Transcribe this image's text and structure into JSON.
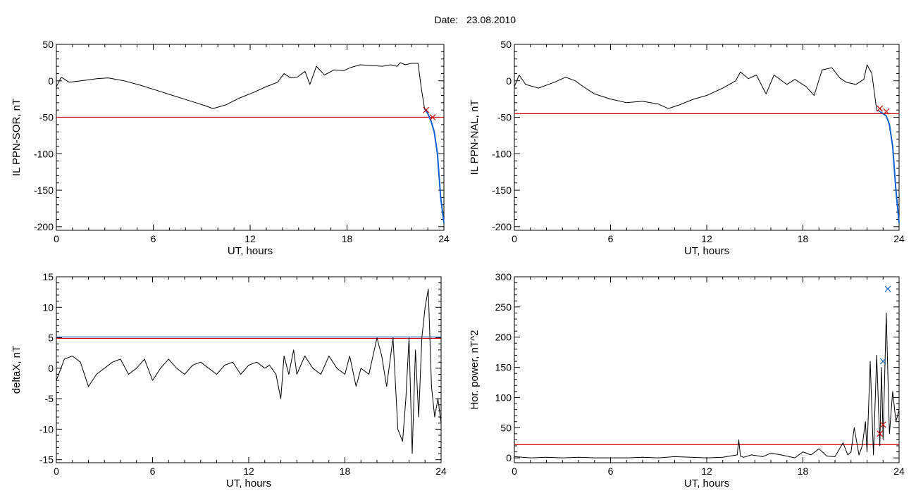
{
  "header": {
    "label": "Date:",
    "date": "23.08.2010"
  },
  "colors": {
    "trace": "#000000",
    "threshold": "#cc0000",
    "blue": "#1060d0",
    "cyan": "#00c8c8",
    "green": "#00a000"
  },
  "chart_data": [
    {
      "type": "line",
      "ylabel": "IL PPN-SOR, nT",
      "xlabel": "UT, hours",
      "xlim": [
        0,
        24
      ],
      "ylim": [
        -205,
        50
      ],
      "xticks": [
        "0",
        "6",
        "12",
        "18",
        "24"
      ],
      "yticks": [
        "50",
        "0",
        "-50",
        "-100",
        "-150",
        "-200"
      ],
      "threshold": -50,
      "series": [
        {
          "x": [
            0,
            0.3,
            0.8,
            1.5,
            2.5,
            3.2,
            4.2,
            5.2,
            6.2,
            7.2,
            8.2,
            9.2,
            9.7,
            10.5,
            11.3,
            12.2,
            13,
            13.7,
            14.1,
            14.5,
            14.9,
            15.4,
            15.7,
            16.1,
            16.6,
            17.2,
            17.8,
            18.2,
            18.8,
            19.5,
            20.2,
            20.7,
            21.1,
            21.3,
            21.6,
            22,
            22.4,
            22.6,
            22.8,
            23,
            23.2,
            23.4,
            23.6,
            23.8,
            24
          ],
          "y": [
            -8,
            5,
            -2,
            0,
            3,
            4,
            0,
            -6,
            -13,
            -20,
            -27,
            -34,
            -38,
            -33,
            -24,
            -16,
            -8,
            -2,
            10,
            4,
            5,
            13,
            -5,
            20,
            8,
            15,
            14,
            18,
            22,
            21,
            20,
            22,
            20,
            25,
            22,
            24,
            24,
            -10,
            -38,
            -45,
            -55,
            -70,
            -100,
            -160,
            -195
          ]
        }
      ],
      "markers": [
        {
          "x": 22.9,
          "y": -40,
          "shape": "x",
          "color": "red"
        },
        {
          "x": 23.3,
          "y": -50,
          "shape": "x",
          "color": "red"
        }
      ]
    },
    {
      "type": "line",
      "ylabel": "IL PPN-NAL, nT",
      "xlabel": "UT, hours",
      "xlim": [
        0,
        24
      ],
      "ylim": [
        -205,
        50
      ],
      "xticks": [
        "0",
        "6",
        "12",
        "18",
        "24"
      ],
      "yticks": [
        "50",
        "0",
        "-50",
        "-100",
        "-150",
        "-200"
      ],
      "threshold": -45,
      "series": [
        {
          "x": [
            0,
            0.3,
            0.7,
            1.5,
            2.5,
            3.2,
            3.8,
            4.3,
            5,
            6,
            7,
            8,
            9,
            9.6,
            10.3,
            11.2,
            12,
            13,
            13.8,
            14.1,
            14.6,
            15.1,
            15.7,
            16.2,
            17,
            17.5,
            18.2,
            18.7,
            19.2,
            19.8,
            20.3,
            20.7,
            21.3,
            21.8,
            22,
            22.3,
            22.6,
            22.8,
            23,
            23.2,
            23.4,
            23.6,
            23.8,
            24
          ],
          "y": [
            -8,
            8,
            -5,
            -10,
            -2,
            5,
            0,
            -8,
            -18,
            -25,
            -30,
            -28,
            -32,
            -38,
            -33,
            -25,
            -20,
            -10,
            0,
            12,
            3,
            8,
            -18,
            8,
            -5,
            2,
            -8,
            -20,
            15,
            18,
            4,
            -2,
            -5,
            2,
            22,
            10,
            -40,
            -42,
            -45,
            -48,
            -60,
            -90,
            -150,
            -195
          ]
        }
      ],
      "markers": [
        {
          "x": 22.8,
          "y": -38,
          "shape": "x",
          "color": "red"
        },
        {
          "x": 23.2,
          "y": -42,
          "shape": "x",
          "color": "red"
        }
      ]
    },
    {
      "type": "line",
      "ylabel": "deltaX, nT",
      "xlabel": "UT, hours",
      "xlim": [
        0,
        24
      ],
      "ylim": [
        -15.5,
        15
      ],
      "xticks": [
        "0",
        "6",
        "12",
        "18",
        "24"
      ],
      "yticks": [
        "15",
        "10",
        "5",
        "0",
        "-5",
        "-10",
        "-15"
      ],
      "threshold": 4.9,
      "series": [
        {
          "x": [
            0,
            0.5,
            1,
            1.5,
            2,
            2.5,
            3,
            3.5,
            4,
            4.5,
            5,
            5.5,
            6,
            6.5,
            7,
            7.5,
            8,
            8.5,
            9,
            9.5,
            10,
            10.5,
            11,
            11.5,
            12,
            12.5,
            13,
            13.3,
            13.7,
            14,
            14.2,
            14.5,
            14.8,
            15,
            15.5,
            16,
            16.5,
            17,
            17.5,
            18,
            18.3,
            18.7,
            19,
            19.5,
            20,
            20.3,
            20.6,
            21,
            21.3,
            21.6,
            21.8,
            22,
            22.2,
            22.4,
            22.6,
            22.8,
            23,
            23.2,
            23.4,
            23.6,
            23.8,
            24
          ],
          "y": [
            -2,
            1.5,
            2,
            1,
            -3,
            -1,
            0,
            1,
            1.5,
            -1,
            0,
            1.5,
            -2,
            0,
            1.5,
            0,
            -1,
            0.5,
            1,
            0,
            -1,
            0.5,
            1,
            -1,
            0.5,
            1,
            0,
            0.5,
            -1,
            -5,
            2,
            -1,
            3,
            -1,
            2,
            0,
            -1,
            2,
            0,
            -1,
            2,
            -3,
            0,
            -1,
            5,
            2,
            -3,
            5,
            -10,
            -12,
            -5,
            5,
            -14,
            3,
            -8,
            5,
            10,
            13,
            -3,
            -8,
            -5,
            -9
          ]
        }
      ],
      "markers": []
    },
    {
      "type": "line",
      "ylabel": "Hor. power, nT^2",
      "xlabel": "UT, hours",
      "xlim": [
        0,
        24
      ],
      "ylim": [
        -8,
        300
      ],
      "xticks": [
        "0",
        "6",
        "12",
        "18",
        "24"
      ],
      "yticks": [
        "300",
        "250",
        "200",
        "150",
        "100",
        "50",
        "0"
      ],
      "threshold": 22,
      "series": [
        {
          "x": [
            0,
            1,
            2,
            3,
            4,
            5,
            6,
            7,
            8,
            9,
            10,
            11,
            12,
            13,
            13.9,
            14,
            14.1,
            14.3,
            14.8,
            15.5,
            16,
            17,
            17.5,
            18,
            18.5,
            19,
            19.5,
            20,
            20.5,
            20.8,
            21,
            21.2,
            21.5,
            21.7,
            21.9,
            22,
            22.2,
            22.4,
            22.6,
            22.8,
            22.9,
            23,
            23.2,
            23.4,
            23.6,
            23.8,
            24
          ],
          "y": [
            2,
            0,
            1,
            0,
            1,
            0,
            0,
            0,
            1,
            0,
            2,
            1,
            0,
            1,
            5,
            30,
            3,
            1,
            5,
            2,
            8,
            3,
            0,
            10,
            5,
            15,
            3,
            2,
            25,
            5,
            10,
            50,
            5,
            20,
            60,
            10,
            160,
            5,
            170,
            20,
            150,
            30,
            240,
            40,
            110,
            60,
            80
          ]
        }
      ],
      "markers": [
        {
          "x": 22.8,
          "y": 40,
          "shape": "x",
          "color": "red"
        },
        {
          "x": 23.0,
          "y": 55,
          "shape": "x",
          "color": "red"
        },
        {
          "x": 23.0,
          "y": 160,
          "shape": "x",
          "color": "blue"
        },
        {
          "x": 23.3,
          "y": 280,
          "shape": "x",
          "color": "blue"
        }
      ]
    }
  ]
}
